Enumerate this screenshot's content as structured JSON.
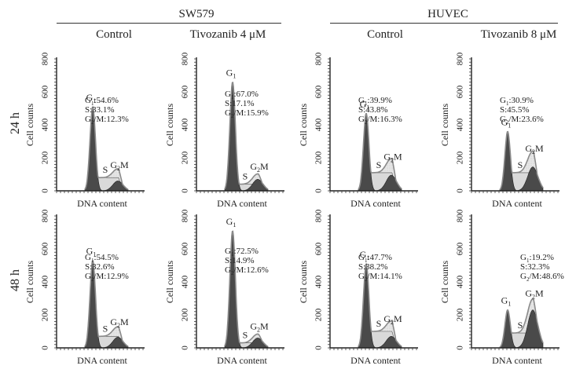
{
  "figure": {
    "groups": [
      {
        "label": "SW579"
      },
      {
        "label": "HUVEC"
      }
    ],
    "columns": [
      {
        "label": "Control"
      },
      {
        "label": "Tivozanib 4 μM"
      },
      {
        "label": "Control"
      },
      {
        "label": "Tivozanib 8 μM"
      }
    ],
    "rows": [
      {
        "label": "24 h"
      },
      {
        "label": "48 h"
      }
    ]
  },
  "chart_data": [
    {
      "type": "area",
      "row": "24 h",
      "group": "SW579",
      "condition": "Control",
      "xlabel": "DNA content",
      "ylabel": "Cell counts",
      "ylim": [
        0,
        800
      ],
      "yticks": [
        0,
        200,
        400,
        600,
        800
      ],
      "peaks": {
        "G1_height": 510,
        "S_plateau": 80,
        "G2M_height": 100
      },
      "phases": {
        "G1": "54.6%",
        "S": "33.1%",
        "G2M": "12.3%"
      },
      "annotation": [
        "G₁:54.6%",
        "S:33.1%",
        "G₂/M:12.3%"
      ],
      "peak_labels": [
        "G₁",
        "S",
        "G₂M"
      ]
    },
    {
      "type": "area",
      "row": "24 h",
      "group": "SW579",
      "condition": "Tivozanib 4 μM",
      "xlabel": "DNA content",
      "ylabel": "Cell counts",
      "ylim": [
        0,
        800
      ],
      "yticks": [
        0,
        200,
        400,
        600,
        800
      ],
      "peaks": {
        "G1_height": 660,
        "S_plateau": 40,
        "G2M_height": 90
      },
      "phases": {
        "G1": "67.0%",
        "S": "17.1%",
        "G2M": "15.9%"
      },
      "annotation": [
        "G₁:67.0%",
        "S:17.1%",
        "G₂/M:15.9%"
      ],
      "peak_labels": [
        "G₁",
        "S",
        "G₂M"
      ]
    },
    {
      "type": "area",
      "row": "24 h",
      "group": "HUVEC",
      "condition": "Control",
      "xlabel": "DNA content",
      "ylabel": "Cell counts",
      "ylim": [
        0,
        800
      ],
      "yticks": [
        0,
        200,
        400,
        600,
        800
      ],
      "peaks": {
        "G1_height": 470,
        "S_plateau": 110,
        "G2M_height": 150
      },
      "phases": {
        "G1": "39.9%",
        "S": "43.8%",
        "G2M": "16.3%"
      },
      "annotation": [
        "G₁:39.9%",
        "S:43.8%",
        "G₂/M:16.3%"
      ],
      "peak_labels": [
        "G₁",
        "S",
        "G₂M"
      ]
    },
    {
      "type": "area",
      "row": "24 h",
      "group": "HUVEC",
      "condition": "Tivozanib 8 μM",
      "xlabel": "DNA content",
      "ylabel": "Cell counts",
      "ylim": [
        0,
        800
      ],
      "yticks": [
        0,
        200,
        400,
        600,
        800
      ],
      "peaks": {
        "G1_height": 360,
        "S_plateau": 110,
        "G2M_height": 200
      },
      "phases": {
        "G1": "30.9%",
        "S": "45.5%",
        "G2M": "23.6%"
      },
      "annotation": [
        "G₁:30.9%",
        "S:45.5%",
        "G₂/M:23.6%"
      ],
      "peak_labels": [
        "G₁",
        "S",
        "G₂M"
      ]
    },
    {
      "type": "area",
      "row": "48 h",
      "group": "SW579",
      "condition": "Control",
      "xlabel": "DNA content",
      "ylabel": "Cell counts",
      "ylim": [
        0,
        800
      ],
      "yticks": [
        0,
        200,
        400,
        600,
        800
      ],
      "peaks": {
        "G1_height": 530,
        "S_plateau": 70,
        "G2M_height": 100
      },
      "phases": {
        "G1": "54.5%",
        "S": "32.6%",
        "G2M": "12.9%"
      },
      "annotation": [
        "G₁:54.5%",
        "S:32.6%",
        "G₂/M:12.9%"
      ],
      "peak_labels": [
        "G₁",
        "S",
        "G₂M"
      ]
    },
    {
      "type": "area",
      "row": "48 h",
      "group": "SW579",
      "condition": "Tivozanib 4 μM",
      "xlabel": "DNA content",
      "ylabel": "Cell counts",
      "ylim": [
        0,
        800
      ],
      "yticks": [
        0,
        200,
        400,
        600,
        800
      ],
      "peaks": {
        "G1_height": 710,
        "S_plateau": 30,
        "G2M_height": 75
      },
      "phases": {
        "G1": "72.5%",
        "S": "14.9%",
        "G2M": "12.6%"
      },
      "annotation": [
        "G₁:72.5%",
        "S:14.9%",
        "G₂/M:12.6%"
      ],
      "peak_labels": [
        "G₁",
        "S",
        "G₂M"
      ]
    },
    {
      "type": "area",
      "row": "48 h",
      "group": "HUVEC",
      "condition": "Control",
      "xlabel": "DNA content",
      "ylabel": "Cell counts",
      "ylim": [
        0,
        800
      ],
      "yticks": [
        0,
        200,
        400,
        600,
        800
      ],
      "peaks": {
        "G1_height": 510,
        "S_plateau": 100,
        "G2M_height": 120
      },
      "phases": {
        "G1": "47.7%",
        "S": "38.2%",
        "G2M": "14.1%"
      },
      "annotation": [
        "G₁:47.7%",
        "S:38.2%",
        "G₂/M:14.1%"
      ],
      "peak_labels": [
        "G₁",
        "S",
        "G₂M"
      ]
    },
    {
      "type": "area",
      "row": "48 h",
      "group": "HUVEC",
      "condition": "Tivozanib 8 μM",
      "xlabel": "DNA content",
      "ylabel": "Cell counts",
      "ylim": [
        0,
        800
      ],
      "yticks": [
        0,
        200,
        400,
        600,
        800
      ],
      "peaks": {
        "G1_height": 230,
        "S_plateau": 90,
        "G2M_height": 275
      },
      "phases": {
        "G1": "19.2%",
        "S": "32.3%",
        "G2M": "48.6%"
      },
      "annotation": [
        "G₁:19.2%",
        "S:32.3%",
        "G₂/M:48.6%"
      ],
      "peak_labels": [
        "G₁",
        "S",
        "G₂M"
      ]
    }
  ]
}
